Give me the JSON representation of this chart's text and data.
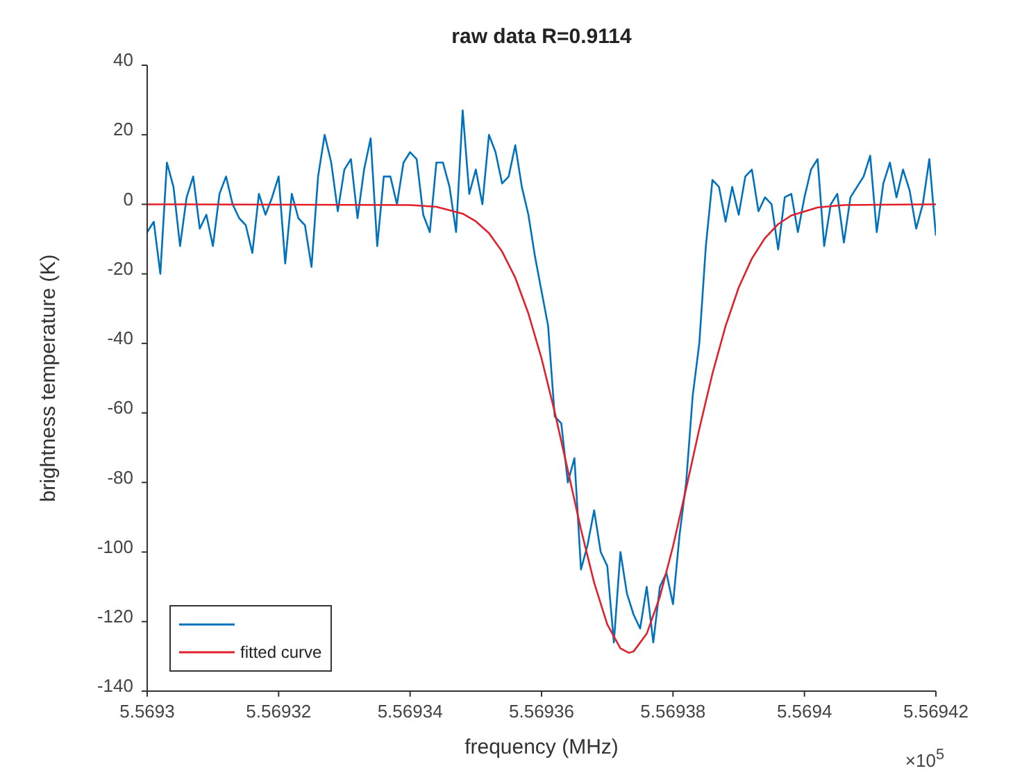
{
  "chart_data": {
    "type": "line",
    "title": "raw data R=0.9114",
    "xlabel": "frequency (MHz)",
    "ylabel": "brightness temperature (K)",
    "annotations": [
      "×10$^{5}$"
    ],
    "xlim": [
      5.5693,
      5.56942
    ],
    "xticks": [
      5.5693,
      5.56932,
      5.56934,
      5.56936,
      5.56938,
      5.5694,
      5.56942
    ],
    "ylim": [
      -140,
      40
    ],
    "yticks": [
      -140,
      -120,
      -100,
      -80,
      -60,
      -40,
      -20,
      0,
      20,
      40
    ],
    "grid": false,
    "legend": "bottom left",
    "marker": "none",
    "line_style": "solid",
    "series": [
      {
        "color": "#0072bd",
        "x": [
          5.5693,
          5.569301,
          5.569302,
          5.569303,
          5.569304,
          5.569305,
          5.569306,
          5.569307,
          5.569308,
          5.569309,
          5.56931,
          5.569311,
          5.569312,
          5.569313,
          5.569314,
          5.569315,
          5.569316,
          5.569317,
          5.569318,
          5.569319,
          5.56932,
          5.569321,
          5.569322,
          5.569323,
          5.569324,
          5.569325,
          5.569326,
          5.569327,
          5.569328,
          5.569329,
          5.56933,
          5.569331,
          5.569332,
          5.569333,
          5.569334,
          5.569335,
          5.569336,
          5.569337,
          5.569338,
          5.569339,
          5.56934,
          5.569341,
          5.569342,
          5.569343,
          5.569344,
          5.569345,
          5.569346,
          5.569347,
          5.569348,
          5.569349,
          5.56935,
          5.569351,
          5.569352,
          5.569353,
          5.569354,
          5.569355,
          5.569356,
          5.569357,
          5.569358,
          5.569359,
          5.56936,
          5.569361,
          5.569362,
          5.569363,
          5.569364,
          5.569365,
          5.569366,
          5.569367,
          5.569368,
          5.569369,
          5.56937,
          5.569371,
          5.569372,
          5.569373,
          5.569374,
          5.569375,
          5.569376,
          5.569377,
          5.569378,
          5.569379,
          5.56938,
          5.569381,
          5.569382,
          5.569383,
          5.569384,
          5.569385,
          5.569386,
          5.569387,
          5.569388,
          5.569389,
          5.56939,
          5.569391,
          5.569392,
          5.569393,
          5.569394,
          5.569395,
          5.569396,
          5.569397,
          5.569398,
          5.569399,
          5.5694,
          5.569401,
          5.569402,
          5.569403,
          5.569404,
          5.569405,
          5.569406,
          5.569407,
          5.569408,
          5.569409,
          5.56941,
          5.569411,
          5.569412,
          5.569413,
          5.569414,
          5.569415,
          5.569416,
          5.569417,
          5.569418,
          5.569419,
          5.56942
        ],
        "values": [
          -8,
          -5,
          -20,
          12,
          5,
          -12,
          2,
          8,
          -7,
          -3,
          -12,
          3,
          8,
          0,
          -4,
          -6,
          -14,
          3,
          -3,
          2,
          8,
          -17,
          3,
          -4,
          -6,
          -18,
          8,
          20,
          12,
          -2,
          10,
          13,
          -4,
          10,
          19,
          -12,
          8,
          8,
          0,
          12,
          15,
          13,
          -3,
          -8,
          12,
          12,
          5,
          -8,
          27,
          3,
          10,
          0,
          20,
          15,
          6,
          8,
          17,
          5,
          -3,
          -15,
          -25,
          -35,
          -61,
          -63,
          -80,
          -73,
          -105,
          -98,
          -88,
          -100,
          -104,
          -126,
          -100,
          -112,
          -118,
          -122,
          -110,
          -126,
          -110,
          -106,
          -115,
          -95,
          -80,
          -55,
          -40,
          -12,
          7,
          5,
          -5,
          5,
          -3,
          8,
          10,
          -2,
          2,
          0,
          -13,
          2,
          3,
          -8,
          2,
          10,
          13,
          -12,
          0,
          3,
          -11,
          2,
          5,
          8,
          14,
          -8,
          6,
          12,
          2,
          10,
          4,
          -7,
          0,
          13,
          -9
        ]
      },
      {
        "name": "fitted curve",
        "color": "#e0202a",
        "x": [
          5.5693,
          5.56934,
          5.569344,
          5.569348,
          5.56935,
          5.569352,
          5.569354,
          5.569356,
          5.569358,
          5.56936,
          5.569362,
          5.569364,
          5.569366,
          5.569368,
          5.56937,
          5.569372,
          5.5693733,
          5.569374,
          5.569376,
          5.569378,
          5.56938,
          5.569382,
          5.569384,
          5.569386,
          5.569388,
          5.56939,
          5.569392,
          5.569394,
          5.569396,
          5.569398,
          5.569402,
          5.569406,
          5.56942
        ],
        "values": [
          0,
          -0.2,
          -0.7,
          -2.7,
          -4.9,
          -8.3,
          -13.6,
          -21.1,
          -31.4,
          -44.3,
          -59.7,
          -76.5,
          -93.5,
          -108.8,
          -120.8,
          -127.7,
          -129,
          -128.6,
          -123.5,
          -112.9,
          -98.4,
          -81.7,
          -64.6,
          -48.7,
          -35,
          -23.9,
          -15.6,
          -9.7,
          -5.7,
          -3.2,
          -0.9,
          -0.2,
          0
        ]
      }
    ]
  }
}
